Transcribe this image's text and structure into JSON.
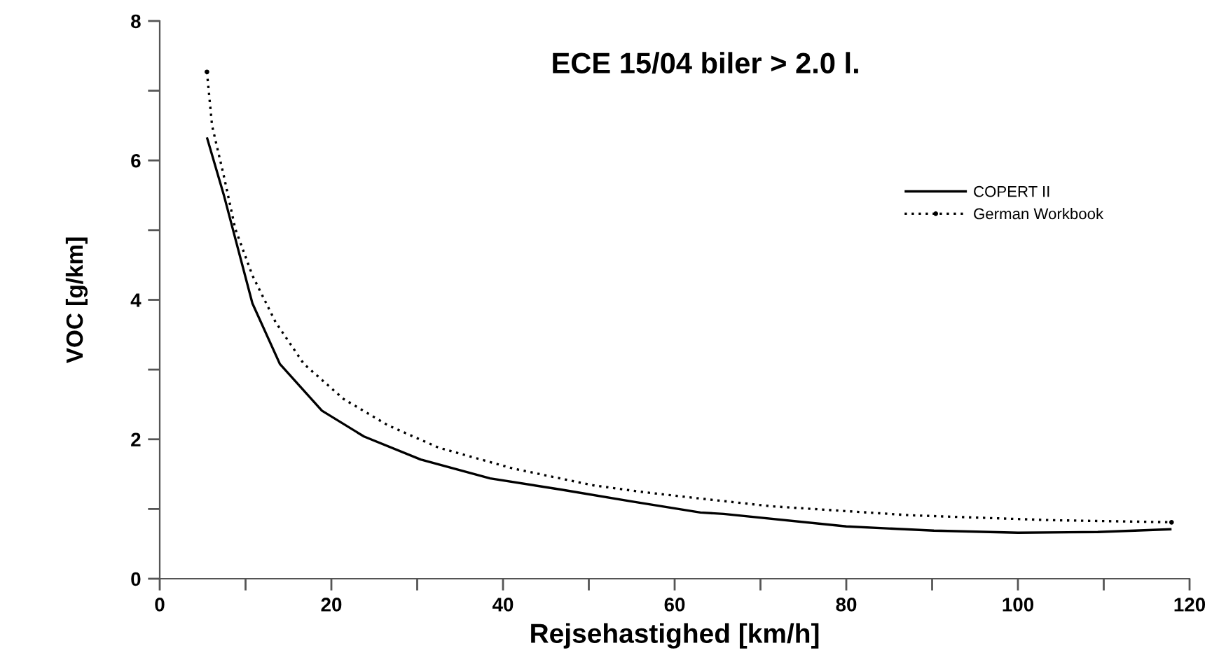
{
  "chart_data": {
    "type": "line",
    "title": "ECE 15/04 biler > 2.0 l.",
    "xlabel": "Rejsehastighed [km/h]",
    "ylabel": "VOC [g/km]",
    "xlim": [
      0,
      120
    ],
    "ylim": [
      0,
      8
    ],
    "xticks": [
      0,
      {
        "value": 10,
        "label": null
      },
      20,
      {
        "value": 30,
        "label": null
      },
      40,
      {
        "value": 50,
        "label": null
      },
      60,
      {
        "value": 70,
        "label": null
      },
      80,
      {
        "value": 90,
        "label": null
      },
      100,
      {
        "value": 110,
        "label": null
      },
      120
    ],
    "yticks": [
      0,
      {
        "value": 1,
        "label": null
      },
      2,
      {
        "value": 3,
        "label": null
      },
      4,
      {
        "value": 5,
        "label": null
      },
      6,
      {
        "value": 7,
        "label": null
      },
      8
    ],
    "grid": false,
    "legend": "top right",
    "series": [
      {
        "name": "COPERT II",
        "color": "#000000",
        "line_style": "solid",
        "x": [
          5.5,
          7.5,
          10.8,
          14.0,
          18.9,
          23.8,
          30.4,
          38.5,
          46.7,
          54.9,
          63.0,
          65.7,
          80,
          90.2,
          100,
          109.3,
          117.9
        ],
        "values": [
          6.33,
          5.49,
          3.95,
          3.08,
          2.41,
          2.04,
          1.71,
          1.44,
          1.28,
          1.11,
          0.95,
          0.93,
          0.75,
          0.69,
          0.66,
          0.67,
          0.71
        ]
      },
      {
        "name": "German Workbook",
        "color": "#000000",
        "line_style": "dotted",
        "x": [
          5.5,
          6.1,
          7.5,
          8.8,
          10.8,
          13.5,
          16.8,
          21.4,
          26.6,
          32.5,
          41.2,
          50.5,
          56.5,
          63.0,
          71.2,
          87.5,
          103.8,
          117.9
        ],
        "values": [
          7.27,
          6.5,
          5.76,
          5.02,
          4.35,
          3.68,
          3.08,
          2.58,
          2.2,
          1.88,
          1.58,
          1.34,
          1.24,
          1.15,
          1.04,
          0.91,
          0.84,
          0.81
        ]
      }
    ]
  }
}
